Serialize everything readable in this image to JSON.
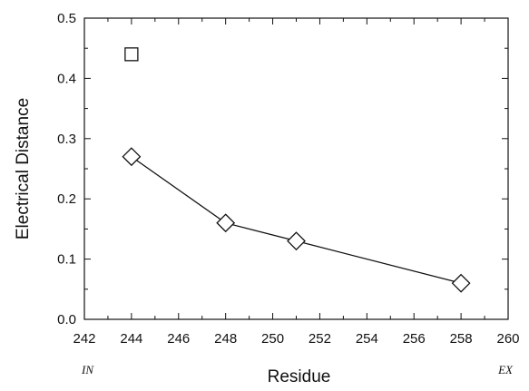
{
  "chart_data": {
    "type": "line",
    "title": "",
    "xlabel": "Residue",
    "ylabel": "Electrical Distance",
    "xlim": [
      242,
      260
    ],
    "ylim": [
      0.0,
      0.5
    ],
    "x_ticks": [
      242,
      244,
      246,
      248,
      250,
      252,
      254,
      256,
      258,
      260
    ],
    "x_tick_labels": [
      "242",
      "244",
      "246",
      "248",
      "250",
      "252",
      "254",
      "256",
      "258",
      "260"
    ],
    "y_ticks": [
      0.0,
      0.1,
      0.2,
      0.3,
      0.4,
      0.5
    ],
    "y_tick_labels": [
      "0.0",
      "0.1",
      "0.2",
      "0.3",
      "0.4",
      "0.5"
    ],
    "grid": false,
    "legend": "none",
    "side_labels": {
      "left": "IN",
      "right": "EX"
    },
    "series": [
      {
        "marker": "diamond",
        "connected": true,
        "x": [
          244,
          248,
          251,
          258
        ],
        "y": [
          0.27,
          0.16,
          0.13,
          0.06
        ]
      },
      {
        "marker": "square",
        "connected": false,
        "x": [
          244
        ],
        "y": [
          0.44
        ]
      }
    ]
  }
}
